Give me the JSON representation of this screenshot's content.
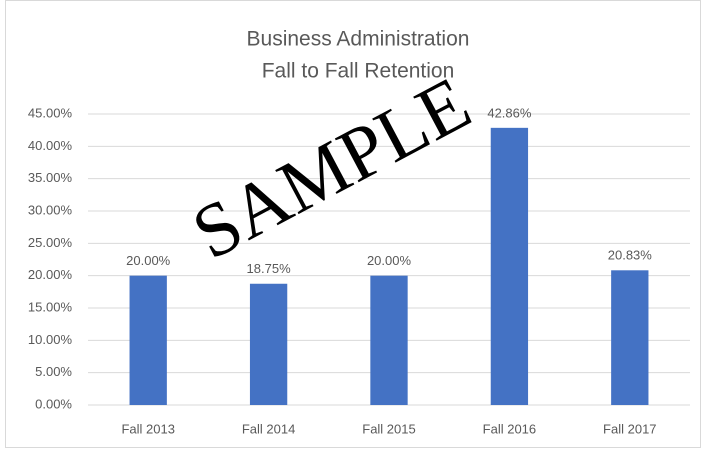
{
  "chart_data": {
    "type": "bar",
    "title": [
      "Business Administration",
      "Fall to Fall Retention"
    ],
    "watermark": "SAMPLE",
    "categories": [
      "Fall 2013",
      "Fall 2014",
      "Fall 2015",
      "Fall 2016",
      "Fall 2017"
    ],
    "values": [
      20,
      18.75,
      20,
      42.86,
      20.83
    ],
    "value_labels": [
      "20.00%",
      "18.75%",
      "20.00%",
      "42.86%",
      "20.83%"
    ],
    "color": "#4472c4",
    "ylim": [
      0,
      45
    ],
    "yticks": [
      {
        "value": 0,
        "label": "0.00%"
      },
      {
        "value": 5,
        "label": "5.00%"
      },
      {
        "value": 10,
        "label": "10.00%"
      },
      {
        "value": 15,
        "label": "15.00%"
      },
      {
        "value": 20,
        "label": "20.00%"
      },
      {
        "value": 25,
        "label": "25.00%"
      },
      {
        "value": 30,
        "label": "30.00%"
      },
      {
        "value": 35,
        "label": "35.00%"
      },
      {
        "value": 40,
        "label": "40.00%"
      },
      {
        "value": 45,
        "label": "45.00%"
      }
    ],
    "grid": true
  }
}
